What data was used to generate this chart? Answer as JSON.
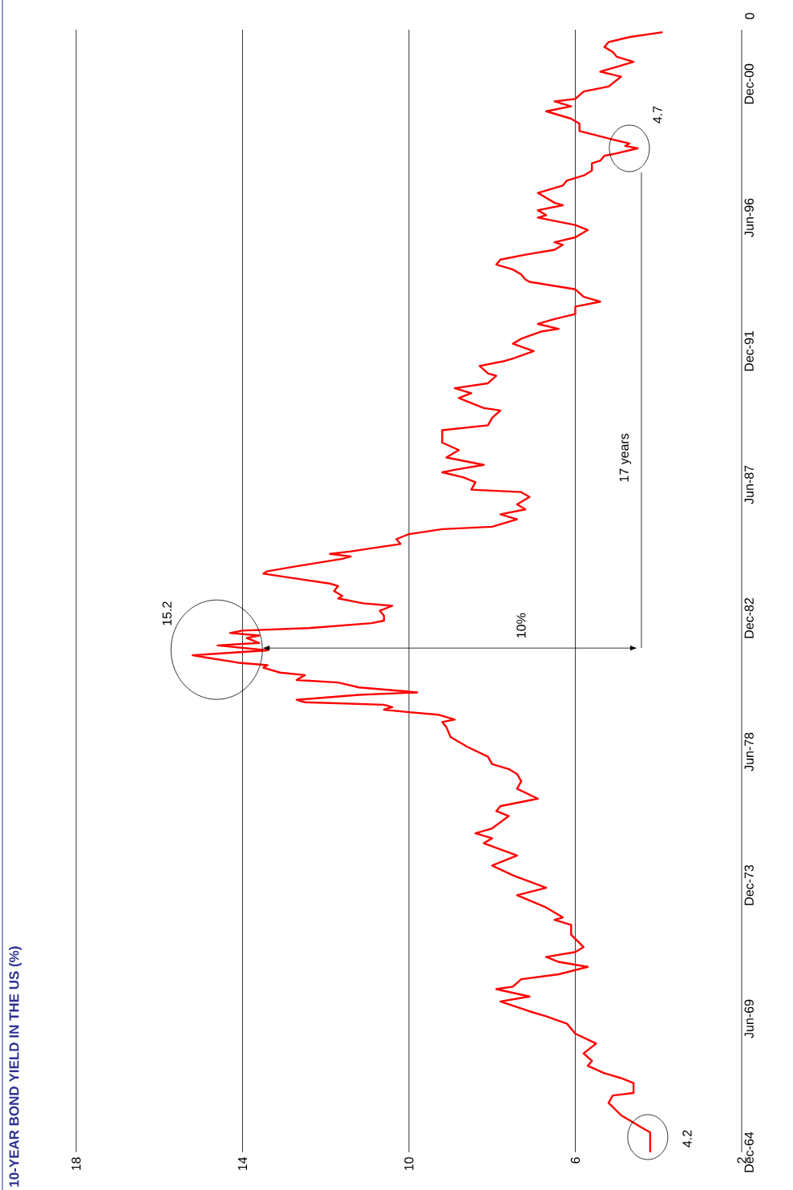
{
  "chart_data": {
    "type": "line",
    "title": "10-YEAR BOND YIELD IN THE US (%)",
    "x": [
      "1964-12",
      "1965-08",
      "1965-10",
      "1966-01",
      "1966-03",
      "1966-08",
      "1966-11",
      "1966-12",
      "1967-04",
      "1967-06",
      "1967-08",
      "1967-11",
      "1968-01",
      "1968-04",
      "1968-08",
      "1968-12",
      "1969-04",
      "1969-07",
      "1969-09",
      "1970-01",
      "1970-03",
      "1970-06",
      "1970-07",
      "1970-10",
      "1970-12",
      "1971-03",
      "1971-05",
      "1971-07",
      "1971-09",
      "1971-11",
      "1972-04",
      "1972-08",
      "1972-10",
      "1972-11",
      "1973-03",
      "1973-08",
      "1973-11",
      "1974-04",
      "1974-08",
      "1974-12",
      "1975-05",
      "1975-07",
      "1975-09",
      "1975-11",
      "1976-04",
      "1976-06",
      "1976-08",
      "1976-11",
      "1977-03",
      "1977-06",
      "1977-09",
      "1977-11",
      "1978-01",
      "1978-04",
      "1978-08",
      "1978-12",
      "1979-04",
      "1979-06",
      "1979-07",
      "1979-09",
      "1979-10",
      "1979-11",
      "1979-12",
      "1980-01",
      "1980-02",
      "1980-03",
      "1980-05",
      "1980-06",
      "1980-08",
      "1980-10",
      "1980-11",
      "1981-01",
      "1981-02",
      "1981-04",
      "1981-05",
      "1981-06",
      "1981-09",
      "1981-11",
      "1982-01",
      "1982-02",
      "1982-04",
      "1982-05",
      "1982-06",
      "1982-07",
      "1982-08",
      "1982-10",
      "1982-11",
      "1983-01",
      "1983-03",
      "1983-05",
      "1983-06",
      "1983-08",
      "1983-09",
      "1983-11",
      "1984-01",
      "1984-02",
      "1984-04",
      "1984-06",
      "1984-07",
      "1984-09",
      "1984-12",
      "1985-01",
      "1985-02",
      "1985-03",
      "1985-06",
      "1985-08",
      "1985-10",
      "1985-12",
      "1986-01",
      "1986-04",
      "1986-06",
      "1986-08",
      "1986-10",
      "1987-01",
      "1987-03",
      "1987-04",
      "1987-07",
      "1987-09",
      "1987-11",
      "1987-12",
      "1988-02",
      "1988-05",
      "1988-08",
      "1988-11",
      "1989-04",
      "1989-06",
      "1989-09",
      "1989-12",
      "1990-01",
      "1990-05",
      "1990-07",
      "1990-09",
      "1990-11",
      "1991-02",
      "1991-03",
      "1991-06",
      "1991-08",
      "1991-09",
      "1991-12",
      "1992-03",
      "1992-05",
      "1992-08",
      "1992-09",
      "1992-11",
      "1993-01",
      "1993-03",
      "1993-06",
      "1993-08",
      "1993-10",
      "1994-01",
      "1994-04",
      "1994-05",
      "1994-07",
      "1994-09",
      "1994-11",
      "1995-01",
      "1995-03",
      "1995-05",
      "1995-07",
      "1995-08",
      "1995-10",
      "1996-01",
      "1996-03",
      "1996-06",
      "1996-07",
      "1996-09",
      "1996-11",
      "1996-12",
      "1997-04",
      "1997-07",
      "1997-09",
      "1997-11",
      "1998-01",
      "1998-04",
      "1998-05",
      "1998-07",
      "1998-08",
      "1998-10",
      "1998-11",
      "1998-12",
      "1999-02",
      "1999-05",
      "1999-08",
      "1999-10",
      "2000-01",
      "2000-03",
      "2000-05",
      "2000-06",
      "2000-09",
      "2000-11",
      "2001-03",
      "2001-05",
      "2001-07",
      "2001-09",
      "2001-11",
      "2002-01",
      "2002-03",
      "2002-05",
      "2002-07",
      "2002-09"
    ],
    "series": [
      {
        "color": "#ff0000",
        "values": [
          4.2,
          4.2,
          4.4,
          4.7,
          4.9,
          5.2,
          5.1,
          4.6,
          4.6,
          4.9,
          5.3,
          5.7,
          5.6,
          5.8,
          5.5,
          6.0,
          6.2,
          6.7,
          7.1,
          7.8,
          7.1,
          7.9,
          7.5,
          7.3,
          6.4,
          5.7,
          6.4,
          6.7,
          6.0,
          5.8,
          6.1,
          6.1,
          6.5,
          6.3,
          6.7,
          7.4,
          6.7,
          7.5,
          8.0,
          7.4,
          8.2,
          8.0,
          8.4,
          8.0,
          7.6,
          7.9,
          7.8,
          6.9,
          7.4,
          7.3,
          7.4,
          7.6,
          8.0,
          8.1,
          8.6,
          9.0,
          9.1,
          9.2,
          8.9,
          9.3,
          10.0,
          10.6,
          10.4,
          10.6,
          12.5,
          12.7,
          11.2,
          9.8,
          11.2,
          11.7,
          12.7,
          12.5,
          13.1,
          13.5,
          13.4,
          14.1,
          15.2,
          13.4,
          14.6,
          13.6,
          13.9,
          13.6,
          14.3,
          14.0,
          12.4,
          10.9,
          10.6,
          10.6,
          10.7,
          10.4,
          11.1,
          11.7,
          11.6,
          11.8,
          11.7,
          11.9,
          12.7,
          13.5,
          13.4,
          12.7,
          11.6,
          11.4,
          11.9,
          11.4,
          10.2,
          10.3,
          10.0,
          9.2,
          8.0,
          7.4,
          7.8,
          7.2,
          7.4,
          7.1,
          7.3,
          8.5,
          8.4,
          8.7,
          9.2,
          8.9,
          8.2,
          9.1,
          8.8,
          9.2,
          9.2,
          8.1,
          8.0,
          7.8,
          8.2,
          8.8,
          8.5,
          8.9,
          8.1,
          7.9,
          8.1,
          8.3,
          7.7,
          7.5,
          7.0,
          7.5,
          7.3,
          6.8,
          6.4,
          6.9,
          6.5,
          6.0,
          6.0,
          5.4,
          5.8,
          6.0,
          7.1,
          7.2,
          7.3,
          7.5,
          7.9,
          7.8,
          7.2,
          6.5,
          6.3,
          6.5,
          6.0,
          5.7,
          6.0,
          6.9,
          6.7,
          6.9,
          6.3,
          6.5,
          6.9,
          6.3,
          6.2,
          5.8,
          5.6,
          5.6,
          5.4,
          5.3,
          5.0,
          4.5,
          4.8,
          4.7,
          5.2,
          5.9,
          5.9,
          6.1,
          6.7,
          6.1,
          6.5,
          6.0,
          5.8,
          5.2,
          4.9,
          5.4,
          5.0,
          4.6,
          5.0,
          5.1,
          5.3,
          5.2,
          4.7,
          3.9
        ]
      }
    ],
    "orientation": "horizontal",
    "ylim": [
      "1964-12",
      "2002-10"
    ],
    "yticks": [
      {
        "value": "1964-12",
        "label": "Dec-64"
      },
      {
        "value": "1969-06",
        "label": "Jun-69"
      },
      {
        "value": "1973-12",
        "label": "Dec-73"
      },
      {
        "value": "1978-06",
        "label": "Jun-78"
      },
      {
        "value": "1982-12",
        "label": "Dec-82"
      },
      {
        "value": "1987-06",
        "label": "Jun-87"
      },
      {
        "value": "1991-12",
        "label": "Dec-91"
      },
      {
        "value": "1996-06",
        "label": "Jun-96"
      },
      {
        "value": "2000-12",
        "label": "Dec-00"
      }
    ],
    "xlim": [
      18,
      2
    ],
    "xticks": [
      2,
      6,
      10,
      14,
      18
    ],
    "grid": "x",
    "annotations": [
      {
        "text": "4.2",
        "x": 4.2,
        "y": "1964-12"
      },
      {
        "text": "15.2",
        "x": 15.2,
        "y": "1981-09"
      },
      {
        "text": "4.7",
        "x": 4.7,
        "y": "1998-10"
      },
      "10%",
      "17 years",
      "0"
    ]
  }
}
